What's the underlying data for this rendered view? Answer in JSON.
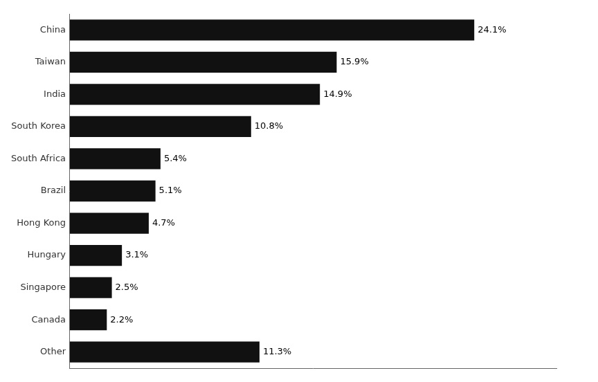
{
  "chart_data": {
    "type": "bar",
    "orientation": "horizontal",
    "categories": [
      "China",
      "Taiwan",
      "India",
      "South Korea",
      "South Africa",
      "Brazil",
      "Hong Kong",
      "Hungary",
      "Singapore",
      "Canada",
      "Other"
    ],
    "values": [
      24.1,
      15.9,
      14.9,
      10.8,
      5.4,
      5.1,
      4.7,
      3.1,
      2.5,
      2.2,
      11.3
    ],
    "value_labels": [
      "24.1%",
      "15.9%",
      "14.9%",
      "10.8%",
      "5.4%",
      "5.1%",
      "4.7%",
      "3.1%",
      "2.5%",
      "2.2%",
      "11.3%"
    ],
    "data_labels": true,
    "color": "#111111",
    "xlim": [
      0,
      29
    ],
    "grid": false,
    "tick_labels": "y"
  }
}
